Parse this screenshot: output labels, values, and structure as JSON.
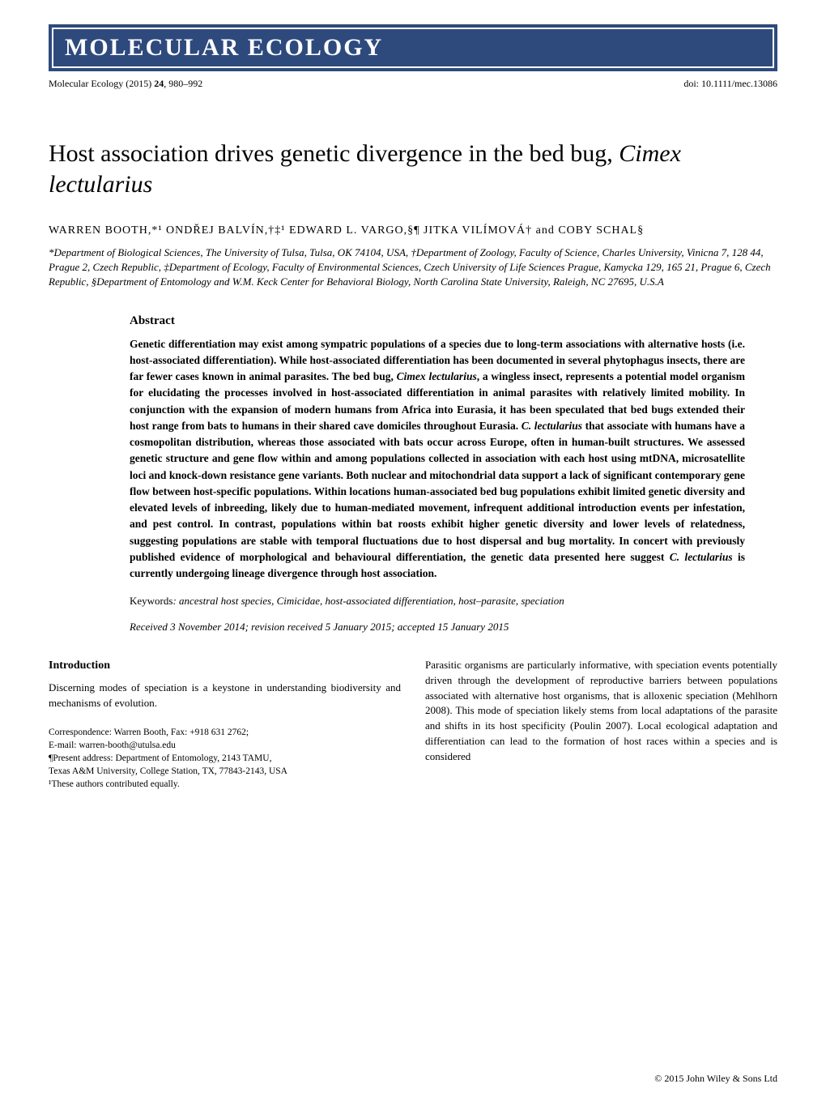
{
  "journal": {
    "banner_name": "MOLECULAR ECOLOGY",
    "citation": "Molecular Ecology (2015) ",
    "volume": "24",
    "pages": ", 980–992",
    "doi": "doi: 10.1111/mec.13086"
  },
  "title": {
    "part1": "Host association drives genetic divergence in the bed bug, ",
    "species": "Cimex lectularius"
  },
  "authors": "WARREN BOOTH,*¹ ONDŘEJ BALVÍN,†‡¹ EDWARD L. VARGO,§¶ JITKA VILÍMOVÁ† and COBY SCHAL§",
  "affiliations": "*Department of Biological Sciences, The University of Tulsa, Tulsa, OK 74104, USA, †Department of Zoology, Faculty of Science, Charles University, Vinicna 7, 128 44, Prague 2, Czech Republic, ‡Department of Ecology, Faculty of Environmental Sciences, Czech University of Life Sciences Prague, Kamycka 129, 165 21, Prague 6, Czech Republic, §Department of Entomology and W.M. Keck Center for Behavioral Biology, North Carolina State University, Raleigh, NC 27695, U.S.A",
  "abstract": {
    "heading": "Abstract",
    "p1a": "Genetic differentiation may exist among sympatric populations of a species due to long-term associations with alternative hosts (i.e. host-associated differentiation). While host-associated differentiation has been documented in several phytophagus insects, there are far fewer cases known in animal parasites. The bed bug, ",
    "p1_sp1": "Cimex lectularius",
    "p1b": ", a wingless insect, represents a potential model organism for elucidating the processes involved in host-associated differentiation in animal parasites with relatively limited mobility. In conjunction with the expansion of modern humans from Africa into Eurasia, it has been speculated that bed bugs extended their host range from bats to humans in their shared cave domiciles throughout Eurasia. ",
    "p1_sp2": "C. lectularius",
    "p1c": " that associate with humans have a cosmopolitan distribution, whereas those associated with bats occur across Europe, often in human-built structures. We assessed genetic structure and gene flow within and among populations collected in association with each host using mtDNA, microsatellite loci and knock-down resistance gene variants. Both nuclear and mitochondrial data support a lack of significant contemporary gene flow between host-specific populations. Within locations human-associated bed bug populations exhibit limited genetic diversity and elevated levels of inbreeding, likely due to human-mediated movement, infrequent additional introduction events per infestation, and pest control. In contrast, populations within bat roosts exhibit higher genetic diversity and lower levels of relatedness, suggesting populations are stable with temporal fluctuations due to host dispersal and bug mortality. In concert with previously published evidence of morphological and behavioural differentiation, the genetic data presented here suggest ",
    "p1_sp3": "C. lectularius",
    "p1d": " is currently undergoing lineage divergence through host association."
  },
  "keywords": {
    "label": "Keywords",
    "text": ": ancestral host species, Cimicidae, host-associated differentiation, host–parasite, speciation"
  },
  "dates": "Received 3 November 2014; revision received 5 January 2015; accepted 15 January 2015",
  "intro": {
    "heading": "Introduction",
    "left_text": "Discerning modes of speciation is a keystone in understanding biodiversity and mechanisms of evolution.",
    "right_text": "Parasitic organisms are particularly informative, with speciation events potentially driven through the development of reproductive barriers between populations associated with alternative host organisms, that is alloxenic speciation (Mehlhorn 2008). This mode of speciation likely stems from local adaptations of the parasite and shifts in its host specificity (Poulin 2007). Local ecological adaptation and differentiation can lead to the formation of host races within a species and is considered"
  },
  "correspondence": {
    "line1": "Correspondence: Warren Booth, Fax: +918 631 2762;",
    "line2": "E-mail: warren-booth@utulsa.edu",
    "line3": "¶Present address: Department of Entomology, 2143 TAMU,",
    "line4": "Texas A&M University, College Station, TX, 77843-2143, USA",
    "line5": "¹These authors contributed equally."
  },
  "copyright": "© 2015 John Wiley & Sons Ltd",
  "colors": {
    "banner_bg": "#2e4a7d",
    "banner_text": "#ffffff",
    "body_text": "#000000",
    "page_bg": "#ffffff"
  }
}
